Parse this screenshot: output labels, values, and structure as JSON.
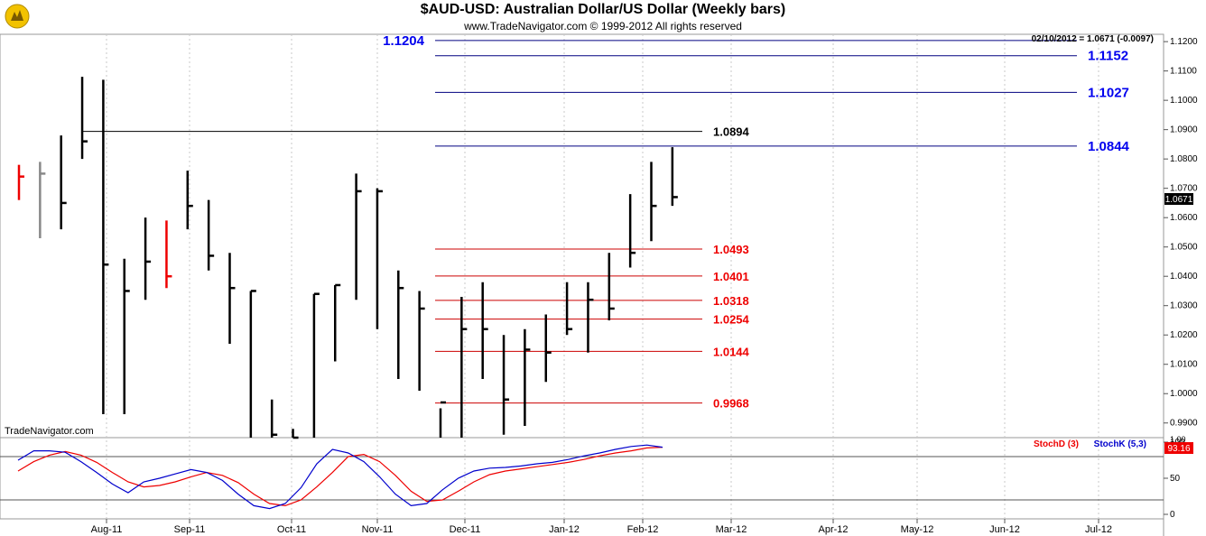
{
  "header": {
    "title": "$AUD-USD:  Australian Dollar/US Dollar  (Weekly bars)",
    "copyright": "www.TradeNavigator.com © 1999-2012 All rights reserved",
    "logo_icon": "trade-navigator-logo-icon"
  },
  "chart_data": {
    "type": "bar",
    "subtype": "ohlc",
    "title": "$AUD-USD:  Australian Dollar/US Dollar  (Weekly bars)",
    "last_value_readout": "02/10/2012 = 1.0671 (-0.0097)",
    "current_price_label": "1.0671",
    "watermark": "TradeNavigator.com",
    "price_axis": {
      "ylim": [
        0.985,
        1.1225
      ],
      "ticks": [
        "1.1200",
        "1.1100",
        "1.1000",
        "1.0900",
        "1.0800",
        "1.0700",
        "1.0600",
        "1.0500",
        "1.0400",
        "1.0300",
        "1.0200",
        "1.0100",
        "1.0000",
        "0.9900"
      ],
      "partial_tick": "1.00"
    },
    "time_axis": {
      "ticks": [
        "Aug-11",
        "Sep-11",
        "Oct-11",
        "Nov-11",
        "Dec-11",
        "Jan-12",
        "Feb-12",
        "Mar-12",
        "Apr-12",
        "May-12",
        "Jun-12",
        "Jul-12"
      ]
    },
    "bars": [
      {
        "color": "#ee0000",
        "high": 1.078,
        "low": 1.066,
        "close": 1.074
      },
      {
        "color": "#888888",
        "high": 1.079,
        "low": 1.053,
        "close": 1.075
      },
      {
        "color": "#000000",
        "high": 1.088,
        "low": 1.056,
        "close": 1.065
      },
      {
        "color": "#000000",
        "high": 1.108,
        "low": 1.08,
        "close": 1.086
      },
      {
        "color": "#000000",
        "high": 1.107,
        "low": 0.993,
        "close": 1.044
      },
      {
        "color": "#000000",
        "high": 1.046,
        "low": 0.993,
        "close": 1.035
      },
      {
        "color": "#000000",
        "high": 1.06,
        "low": 1.032,
        "close": 1.045
      },
      {
        "color": "#ee0000",
        "high": 1.059,
        "low": 1.036,
        "close": 1.04
      },
      {
        "color": "#000000",
        "high": 1.076,
        "low": 1.056,
        "close": 1.064
      },
      {
        "color": "#000000",
        "high": 1.066,
        "low": 1.042,
        "close": 1.047
      },
      {
        "color": "#000000",
        "high": 1.048,
        "low": 1.017,
        "close": 1.036
      },
      {
        "color": "#000000",
        "high": 1.035,
        "low": 0.98,
        "close": 1.035
      },
      {
        "color": "#000000",
        "high": 0.998,
        "low": 0.98,
        "close": 0.986
      },
      {
        "color": "#000000",
        "high": 0.988,
        "low": 0.98,
        "close": 0.985
      },
      {
        "color": "#000000",
        "high": 1.034,
        "low": 0.98,
        "close": 1.034
      },
      {
        "color": "#000000",
        "high": 1.037,
        "low": 1.011,
        "close": 1.037
      },
      {
        "color": "#000000",
        "high": 1.075,
        "low": 1.032,
        "close": 1.069
      },
      {
        "color": "#000000",
        "high": 1.07,
        "low": 1.022,
        "close": 1.069
      },
      {
        "color": "#000000",
        "high": 1.042,
        "low": 1.005,
        "close": 1.036
      },
      {
        "color": "#000000",
        "high": 1.035,
        "low": 1.001,
        "close": 1.029
      },
      {
        "color": "#000000",
        "high": 0.995,
        "low": 0.98,
        "close": 0.997
      },
      {
        "color": "#000000",
        "high": 1.033,
        "low": 0.98,
        "close": 1.022
      },
      {
        "color": "#000000",
        "high": 1.038,
        "low": 1.005,
        "close": 1.022
      },
      {
        "color": "#000000",
        "high": 1.02,
        "low": 0.986,
        "close": 0.998
      },
      {
        "color": "#000000",
        "high": 1.022,
        "low": 0.989,
        "close": 1.015
      },
      {
        "color": "#000000",
        "high": 1.027,
        "low": 1.004,
        "close": 1.014
      },
      {
        "color": "#000000",
        "high": 1.038,
        "low": 1.02,
        "close": 1.022
      },
      {
        "color": "#000000",
        "high": 1.038,
        "low": 1.014,
        "close": 1.032
      },
      {
        "color": "#000000",
        "high": 1.048,
        "low": 1.025,
        "close": 1.029
      },
      {
        "color": "#000000",
        "high": 1.068,
        "low": 1.043,
        "close": 1.048
      },
      {
        "color": "#000000",
        "high": 1.079,
        "low": 1.052,
        "close": 1.064
      },
      {
        "color": "#000000",
        "high": 1.084,
        "low": 1.064,
        "close": 1.067
      }
    ],
    "levels": [
      {
        "label": "1.1204",
        "value": 1.1204,
        "color": "#0000ee",
        "line_color": "#000080",
        "label_side": "left"
      },
      {
        "label": "1.1152",
        "value": 1.1152,
        "color": "#0000ee",
        "line_color": "#000080",
        "label_side": "right"
      },
      {
        "label": "1.1027",
        "value": 1.1027,
        "color": "#0000ee",
        "line_color": "#000080",
        "label_side": "right"
      },
      {
        "label": "1.0894",
        "value": 1.0894,
        "color": "#000000",
        "line_color": "#000000",
        "label_side": "right"
      },
      {
        "label": "1.0844",
        "value": 1.0844,
        "color": "#0000ee",
        "line_color": "#000080",
        "label_side": "right"
      },
      {
        "label": "1.0493",
        "value": 1.0493,
        "color": "#ee0000",
        "line_color": "#cc0000",
        "label_side": "right"
      },
      {
        "label": "1.0401",
        "value": 1.0401,
        "color": "#ee0000",
        "line_color": "#cc0000",
        "label_side": "right"
      },
      {
        "label": "1.0318",
        "value": 1.0318,
        "color": "#ee0000",
        "line_color": "#cc0000",
        "label_side": "right"
      },
      {
        "label": "1.0254",
        "value": 1.0254,
        "color": "#ee0000",
        "line_color": "#cc0000",
        "label_side": "right"
      },
      {
        "label": "1.0144",
        "value": 1.0144,
        "color": "#ee0000",
        "line_color": "#cc0000",
        "label_side": "right"
      },
      {
        "label": "0.9968",
        "value": 0.9968,
        "color": "#ee0000",
        "line_color": "#cc0000",
        "label_side": "right"
      }
    ],
    "stochastic": {
      "legend": [
        {
          "name": "StochD (3)",
          "color": "#ee0000"
        },
        {
          "name": "StochK (5,3)",
          "color": "#0000cc"
        }
      ],
      "ylim": [
        0,
        100
      ],
      "ticks": [
        "100",
        "50",
        "0"
      ],
      "current_value_label": "93.16",
      "reference_levels": [
        80,
        20
      ],
      "k_values": [
        75,
        88,
        88,
        86,
        73,
        58,
        42,
        30,
        45,
        50,
        56,
        62,
        58,
        47,
        28,
        12,
        8,
        15,
        37,
        70,
        90,
        85,
        73,
        52,
        28,
        12,
        15,
        34,
        50,
        60,
        64,
        65,
        67,
        70,
        72,
        76,
        81,
        85,
        90,
        94,
        96,
        93
      ],
      "d_values": [
        60,
        73,
        82,
        87,
        82,
        72,
        58,
        45,
        38,
        40,
        45,
        52,
        58,
        54,
        44,
        28,
        15,
        12,
        20,
        38,
        58,
        80,
        83,
        73,
        54,
        32,
        18,
        20,
        32,
        45,
        55,
        60,
        63,
        66,
        69,
        72,
        76,
        81,
        85,
        88,
        92,
        93
      ]
    }
  }
}
